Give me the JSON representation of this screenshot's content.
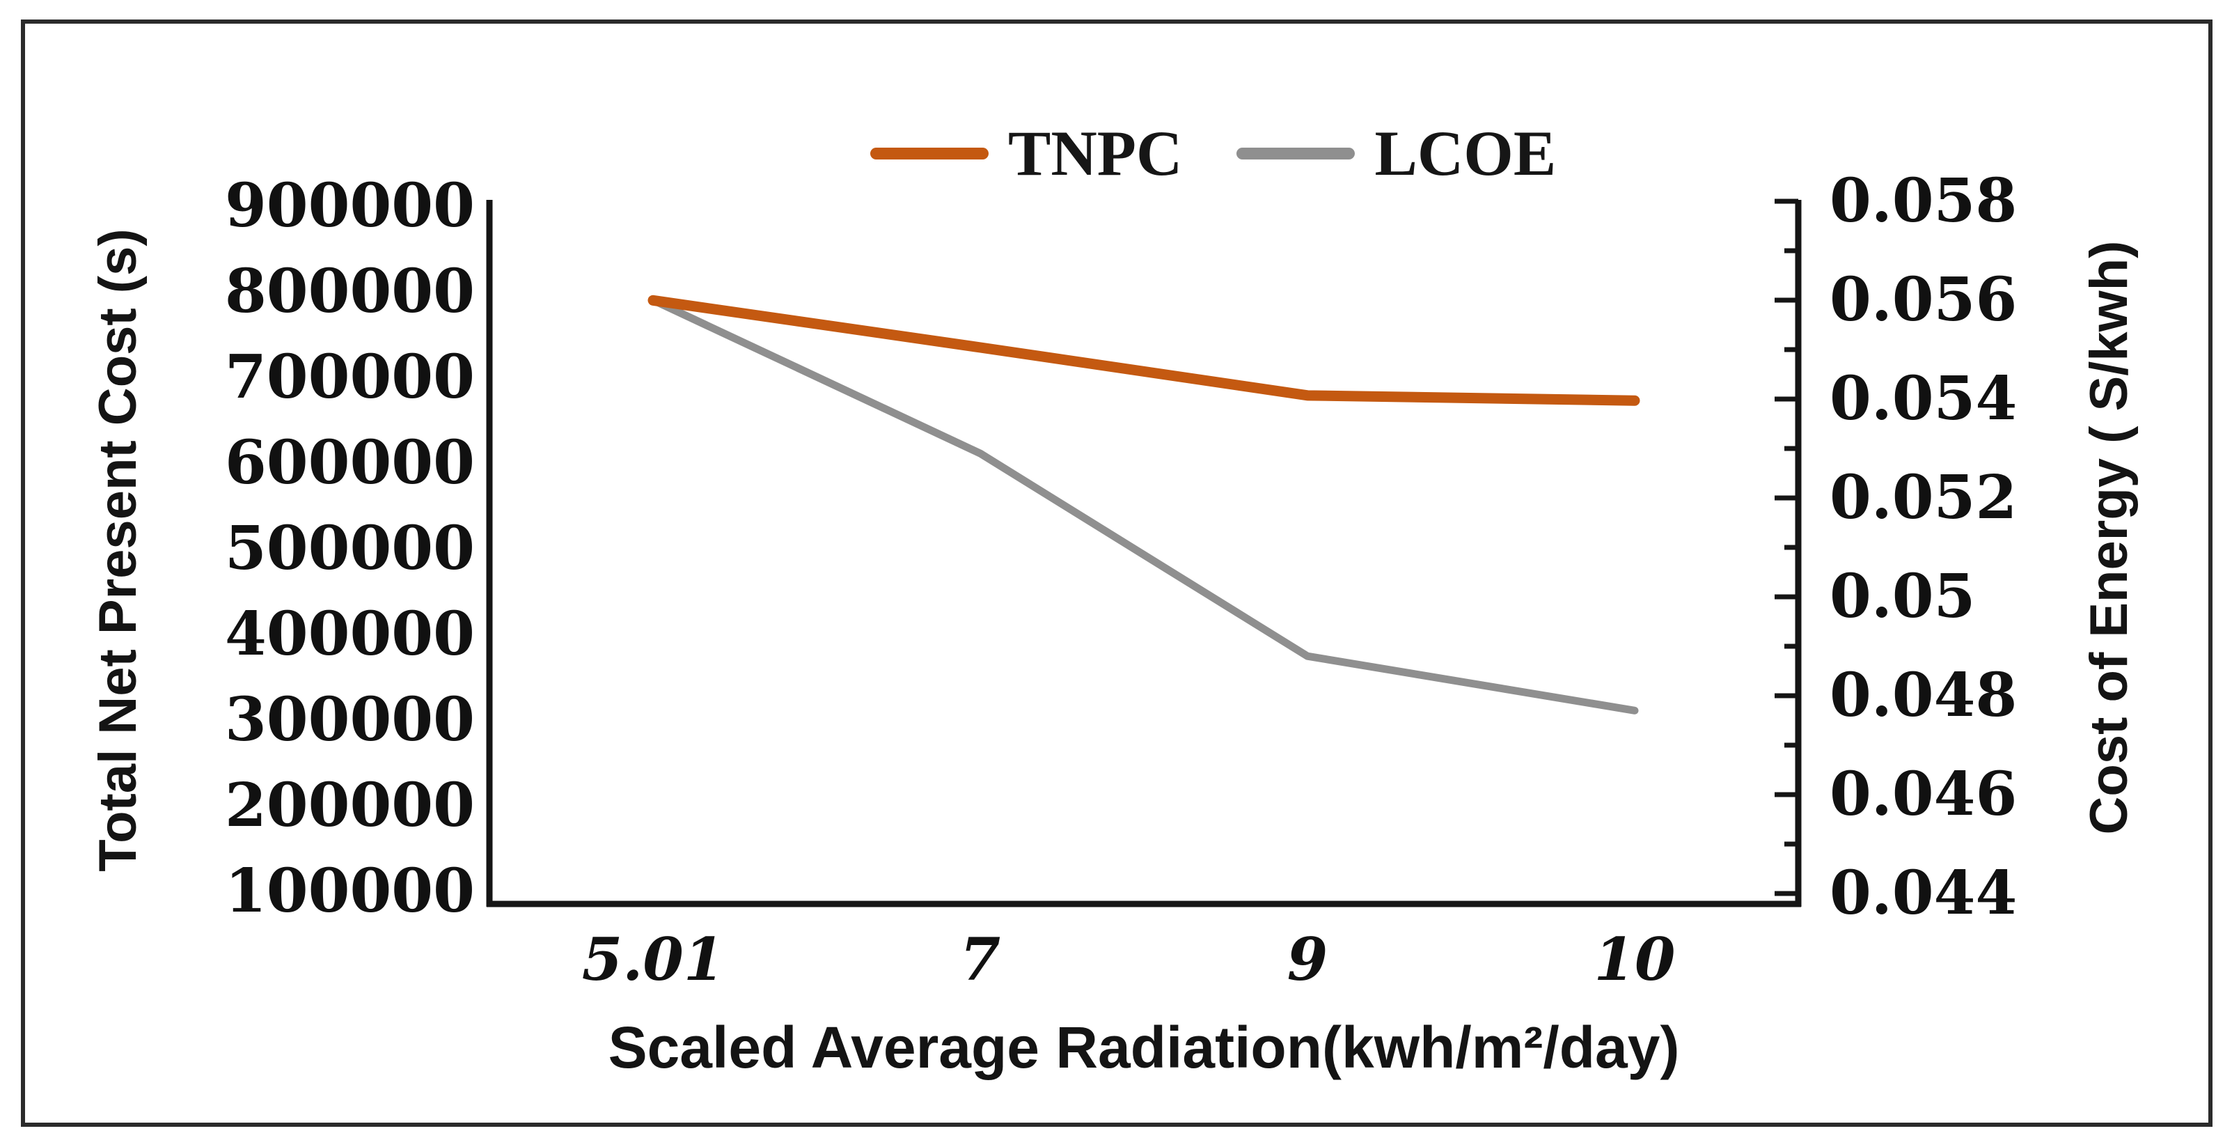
{
  "figure": {
    "background": "#ffffff",
    "border_color": "#2b2b2b"
  },
  "legend": {
    "position": "top-center",
    "items": [
      {
        "label": "TNPC",
        "color": "#c45911"
      },
      {
        "label": "LCOE",
        "color": "#8f8f8f"
      }
    ]
  },
  "chart_data": {
    "type": "line",
    "title": "",
    "categories": [
      "5.01",
      "7",
      "9",
      "10"
    ],
    "series": [
      {
        "name": "TNPC",
        "axis": "left",
        "color": "#c45911",
        "values": [
          790000,
          735000,
          679000,
          673000
        ]
      },
      {
        "name": "LCOE",
        "axis": "right",
        "color": "#8f8f8f",
        "values": [
          0.056,
          0.0529,
          0.0488,
          0.0477
        ]
      }
    ],
    "x_axis": {
      "label": "Scaled Average Radiation(kwh/m²/day)",
      "tick_labels": [
        "5.01",
        "7",
        "9",
        "10"
      ]
    },
    "left_axis": {
      "label": "Total Net Present Cost (s)",
      "tick_labels": [
        "900000",
        "800000",
        "700000",
        "600000",
        "500000",
        "400000",
        "300000",
        "200000",
        "100000"
      ],
      "tick_values": [
        900000,
        800000,
        700000,
        600000,
        500000,
        400000,
        300000,
        200000,
        100000
      ],
      "range": [
        100000,
        900000
      ]
    },
    "right_axis": {
      "label": "Cost of Energy ( S/kwh)",
      "tick_labels": [
        "0.058",
        "0.056",
        "0.054",
        "0.052",
        "0.05",
        "0.048",
        "0.046",
        "0.044"
      ],
      "tick_values": [
        0.058,
        0.056,
        0.054,
        0.052,
        0.05,
        0.048,
        0.046,
        0.044
      ],
      "minor_tick_step": 0.001,
      "range": [
        0.044,
        0.058
      ]
    },
    "grid": false,
    "legend_position": "top"
  }
}
